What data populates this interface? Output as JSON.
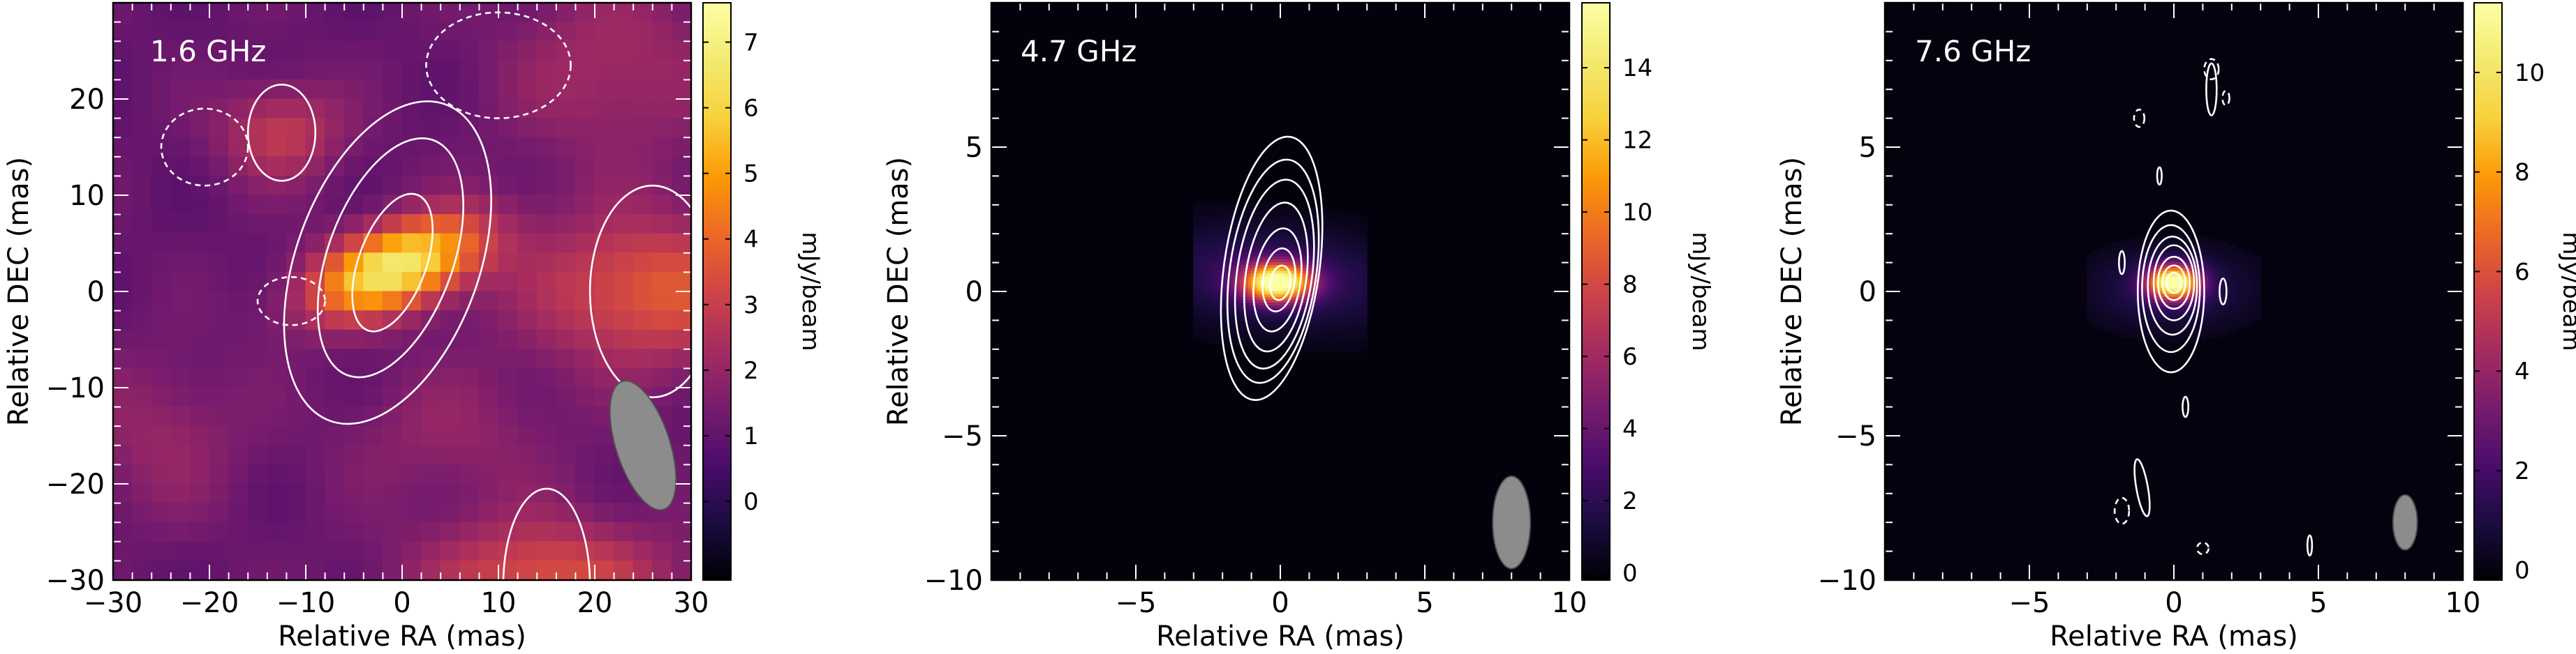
{
  "chart_data": [
    {
      "type": "heatmap",
      "frequency_label": "1.6 GHz",
      "xlabel": "Relative RA (mas)",
      "ylabel": "Relative DEC (mas)",
      "colorbar_label": "mJy/beam",
      "xlim": [
        30,
        -30
      ],
      "ylim": [
        -30,
        30
      ],
      "xticks": [
        20,
        10,
        0,
        -10,
        -20
      ],
      "xtick_labels": [
        "20",
        "10",
        "0",
        "−10",
        "−20"
      ],
      "xlim_labels": [
        "−30",
        "30"
      ],
      "yticks": [
        -30,
        -20,
        -10,
        0,
        10,
        20
      ],
      "ytick_labels": [
        "−30",
        "−20",
        "−10",
        "0",
        "10",
        "20"
      ],
      "colorbar_range": [
        -1.2,
        7.6
      ],
      "colorbar_ticks": [
        0,
        1,
        2,
        3,
        4,
        5,
        6,
        7
      ],
      "colormap": "inferno",
      "pixelated": true,
      "peak": {
        "ra": 0.0,
        "dec": 1.5,
        "value": 7.6
      },
      "contours": [
        {
          "kind": "positive",
          "ra": 1.0,
          "dec": 3.0,
          "a": 7.5,
          "b": 3.5,
          "pa": 20
        },
        {
          "kind": "positive",
          "ra": 1.2,
          "dec": 3.5,
          "a": 13.0,
          "b": 6.5,
          "pa": 20
        },
        {
          "kind": "positive",
          "ra": 1.5,
          "dec": 3.0,
          "a": 17.5,
          "b": 9.5,
          "pa": 20
        },
        {
          "kind": "positive",
          "ra": -26.0,
          "dec": 0.0,
          "a": 11.0,
          "b": 6.5,
          "pa": 0
        },
        {
          "kind": "positive",
          "ra": 12.5,
          "dec": 16.5,
          "a": 5.0,
          "b": 3.5,
          "pa": 0
        },
        {
          "kind": "positive",
          "ra": -15.0,
          "dec": -30.5,
          "a": 10.0,
          "b": 4.5,
          "pa": 0
        },
        {
          "kind": "negative",
          "ra": 20.5,
          "dec": 15.0,
          "a": 4.0,
          "b": 4.5,
          "pa": 0
        },
        {
          "kind": "negative",
          "ra": 11.5,
          "dec": -1.0,
          "a": 2.5,
          "b": 3.5,
          "pa": 0
        },
        {
          "kind": "negative",
          "ra": -10.0,
          "dec": 23.5,
          "a": 5.5,
          "b": 7.5,
          "pa": 0
        }
      ],
      "beam": {
        "ra": -25.0,
        "dec": -16.0,
        "a": 7.0,
        "b": 2.8,
        "pa": 18
      }
    },
    {
      "type": "heatmap",
      "frequency_label": "4.7 GHz",
      "xlabel": "Relative RA (mas)",
      "ylabel": "Relative DEC (mas)",
      "colorbar_label": "mJy/beam",
      "xlim": [
        10,
        -10
      ],
      "ylim": [
        -10,
        10
      ],
      "xticks": [
        5,
        0,
        -5
      ],
      "xtick_labels": [
        "5",
        "0",
        "−5"
      ],
      "xlim_labels": [
        "−10",
        "10"
      ],
      "yticks": [
        -10,
        -5,
        0,
        5
      ],
      "ytick_labels": [
        "−10",
        "−5",
        "0",
        "5"
      ],
      "colorbar_range": [
        -0.2,
        15.8
      ],
      "colorbar_ticks": [
        0,
        2,
        4,
        6,
        8,
        10,
        12,
        14
      ],
      "colormap": "inferno",
      "peak": {
        "ra": 0.1,
        "dec": 0.3,
        "value": 15.7
      },
      "contours": [
        {
          "kind": "positive",
          "ra": 0.0,
          "dec": 0.3,
          "a": 0.6,
          "b": 0.35,
          "pa": 8
        },
        {
          "kind": "positive",
          "ra": 0.05,
          "dec": 0.4,
          "a": 1.1,
          "b": 0.55,
          "pa": 8
        },
        {
          "kind": "positive",
          "ra": 0.1,
          "dec": 0.4,
          "a": 1.8,
          "b": 0.8,
          "pa": 8
        },
        {
          "kind": "positive",
          "ra": 0.15,
          "dec": 0.5,
          "a": 2.6,
          "b": 1.05,
          "pa": 8
        },
        {
          "kind": "positive",
          "ra": 0.2,
          "dec": 0.6,
          "a": 3.3,
          "b": 1.3,
          "pa": 8
        },
        {
          "kind": "positive",
          "ra": 0.25,
          "dec": 0.7,
          "a": 3.9,
          "b": 1.5,
          "pa": 8
        },
        {
          "kind": "positive",
          "ra": 0.3,
          "dec": 0.8,
          "a": 4.6,
          "b": 1.65,
          "pa": 8
        }
      ],
      "beam": {
        "ra": -8.0,
        "dec": -8.0,
        "a": 1.6,
        "b": 0.65,
        "pa": 0
      }
    },
    {
      "type": "heatmap",
      "frequency_label": "7.6 GHz",
      "xlabel": "Relative RA (mas)",
      "ylabel": "Relative DEC (mas)",
      "colorbar_label": "mJy/beam",
      "xlim": [
        10,
        -10
      ],
      "ylim": [
        -10,
        10
      ],
      "xticks": [
        5,
        0,
        -5
      ],
      "xtick_labels": [
        "5",
        "0",
        "−5"
      ],
      "xlim_labels": [
        "−10",
        "10"
      ],
      "yticks": [
        -10,
        -5,
        0,
        5
      ],
      "ytick_labels": [
        "−10",
        "−5",
        "0",
        "5"
      ],
      "colorbar_range": [
        -0.2,
        11.4
      ],
      "colorbar_ticks": [
        0,
        2,
        4,
        6,
        8,
        10
      ],
      "colormap": "inferno",
      "peak": {
        "ra": 0.0,
        "dec": 0.3,
        "value": 11.3
      },
      "contours": [
        {
          "kind": "positive",
          "ra": 0.0,
          "dec": 0.3,
          "a": 0.35,
          "b": 0.25,
          "pa": 0
        },
        {
          "kind": "positive",
          "ra": 0.0,
          "dec": 0.3,
          "a": 0.6,
          "b": 0.4,
          "pa": 0
        },
        {
          "kind": "positive",
          "ra": 0.0,
          "dec": 0.3,
          "a": 0.9,
          "b": 0.55,
          "pa": 0
        },
        {
          "kind": "positive",
          "ra": 0.0,
          "dec": 0.3,
          "a": 1.3,
          "b": 0.7,
          "pa": 0
        },
        {
          "kind": "positive",
          "ra": 0.05,
          "dec": 0.2,
          "a": 1.7,
          "b": 0.85,
          "pa": 0
        },
        {
          "kind": "positive",
          "ra": 0.1,
          "dec": 0.1,
          "a": 2.2,
          "b": 1.0,
          "pa": 0
        },
        {
          "kind": "positive",
          "ra": 0.1,
          "dec": 0.0,
          "a": 2.8,
          "b": 1.15,
          "pa": 0
        },
        {
          "kind": "positive",
          "ra": -1.3,
          "dec": 7.0,
          "a": 0.9,
          "b": 0.18,
          "pa": 0
        },
        {
          "kind": "positive",
          "ra": -1.7,
          "dec": 0.0,
          "a": 0.45,
          "b": 0.12,
          "pa": 0
        },
        {
          "kind": "positive",
          "ra": 0.5,
          "dec": 4.0,
          "a": 0.3,
          "b": 0.08,
          "pa": 0
        },
        {
          "kind": "positive",
          "ra": 1.1,
          "dec": -6.8,
          "a": 1.0,
          "b": 0.2,
          "pa": -10
        },
        {
          "kind": "positive",
          "ra": -0.4,
          "dec": -4.0,
          "a": 0.35,
          "b": 0.1,
          "pa": 0
        },
        {
          "kind": "positive",
          "ra": 1.8,
          "dec": 1.0,
          "a": 0.4,
          "b": 0.1,
          "pa": 0
        },
        {
          "kind": "positive",
          "ra": -4.7,
          "dec": -8.8,
          "a": 0.35,
          "b": 0.08,
          "pa": 0
        },
        {
          "kind": "negative",
          "ra": -1.3,
          "dec": 7.7,
          "a": 0.35,
          "b": 0.25,
          "pa": 0
        },
        {
          "kind": "negative",
          "ra": -1.8,
          "dec": 6.7,
          "a": 0.25,
          "b": 0.12,
          "pa": 0
        },
        {
          "kind": "negative",
          "ra": 1.2,
          "dec": 6.0,
          "a": 0.3,
          "b": 0.18,
          "pa": 0
        },
        {
          "kind": "negative",
          "ra": 1.8,
          "dec": -7.6,
          "a": 0.45,
          "b": 0.25,
          "pa": 0
        },
        {
          "kind": "negative",
          "ra": -1.0,
          "dec": -8.9,
          "a": 0.2,
          "b": 0.2,
          "pa": 0
        }
      ],
      "beam": {
        "ra": -8.0,
        "dec": -8.0,
        "a": 0.95,
        "b": 0.42,
        "pa": 0
      }
    }
  ],
  "colors": {
    "contour": "#ffffff",
    "beam_fill": "#8c8c8c",
    "beam_stroke": "#505050",
    "background": "#000004"
  }
}
